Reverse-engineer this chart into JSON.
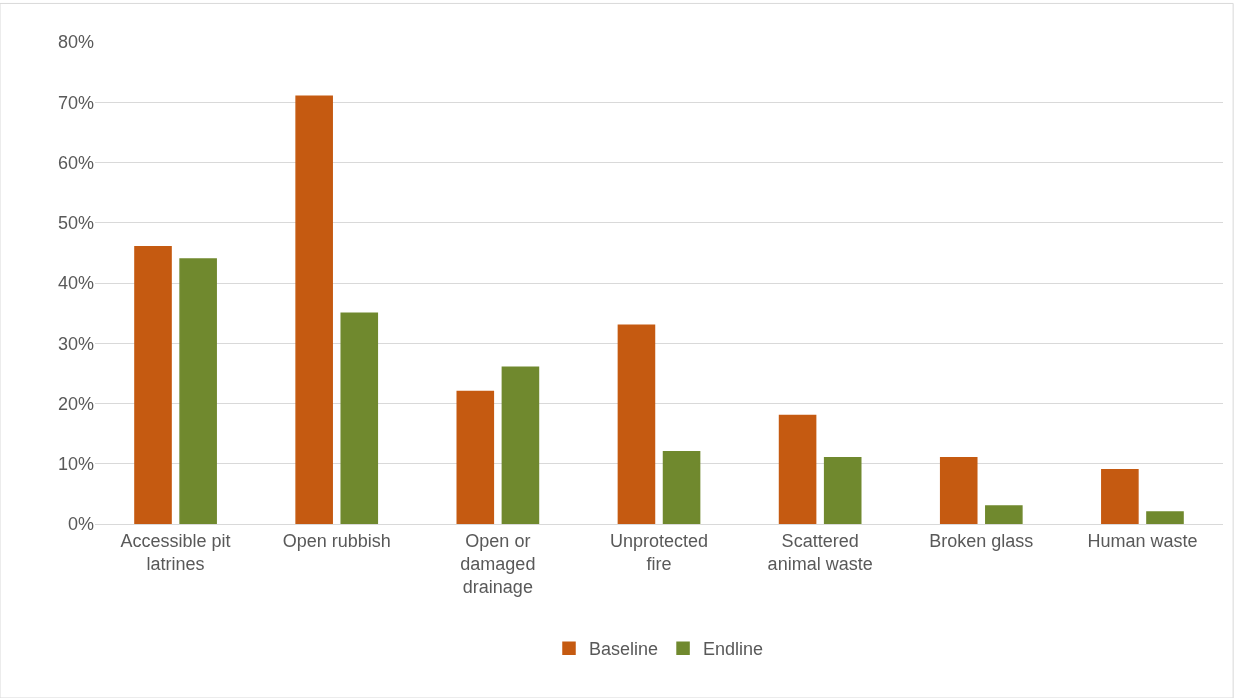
{
  "chart_data": {
    "type": "bar",
    "categories": [
      "Accessible pit latrines",
      "Open rubbish",
      "Open or damaged drainage",
      "Unprotected fire",
      "Scattered animal waste",
      "Broken glass",
      "Human waste"
    ],
    "series": [
      {
        "name": "Baseline",
        "color": "#c55a11",
        "values": [
          46,
          71,
          22,
          33,
          18,
          11,
          9
        ]
      },
      {
        "name": "Endline",
        "color": "#70892e",
        "values": [
          44,
          35,
          26,
          12,
          11,
          3,
          2
        ]
      }
    ],
    "ylim": [
      0,
      80
    ],
    "yticks": [
      {
        "value": 0,
        "label": "0%"
      },
      {
        "value": 10,
        "label": "10%"
      },
      {
        "value": 20,
        "label": "20%"
      },
      {
        "value": 30,
        "label": "30%"
      },
      {
        "value": 40,
        "label": "40%"
      },
      {
        "value": 50,
        "label": "50%"
      },
      {
        "value": 60,
        "label": "60%"
      },
      {
        "value": 70,
        "label": "70%"
      },
      {
        "value": 80,
        "label": "80%"
      }
    ],
    "grid": "y",
    "legend": "bottom"
  }
}
